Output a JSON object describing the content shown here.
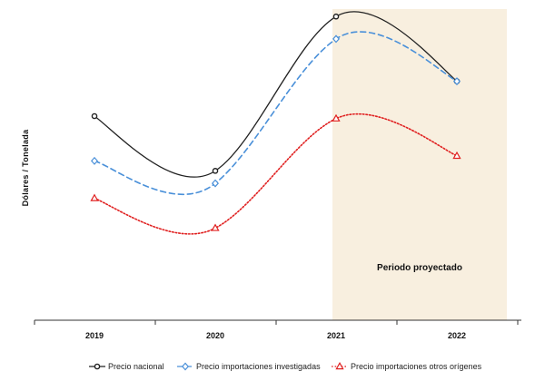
{
  "chart_data": {
    "type": "line",
    "categories": [
      "2019",
      "2020",
      "2021",
      "2022"
    ],
    "ylabel": "Dólares / Tonelada",
    "xlabel": "",
    "title": "",
    "y_ticks_shown": false,
    "grid": false,
    "legend_position": "bottom",
    "annotation": {
      "text": "Periodo proyectado",
      "shaded_from": "2021",
      "shaded_to": "2022",
      "shade_color": "#f8efdf"
    },
    "series": [
      {
        "name": "Precio nacional",
        "values": [
          62,
          40,
          102,
          76
        ],
        "color": "#222222",
        "marker": "circle",
        "line_style": "solid"
      },
      {
        "name": "Precio importaciones investigadas",
        "values": [
          44,
          35,
          93,
          76
        ],
        "color": "#4a90d9",
        "marker": "diamond",
        "line_style": "dashed"
      },
      {
        "name": "Precio importaciones otros orígenes",
        "values": [
          29,
          17,
          61,
          46
        ],
        "color": "#e02020",
        "marker": "triangle",
        "line_style": "dotted"
      }
    ],
    "ylim": [
      -20,
      105
    ]
  }
}
